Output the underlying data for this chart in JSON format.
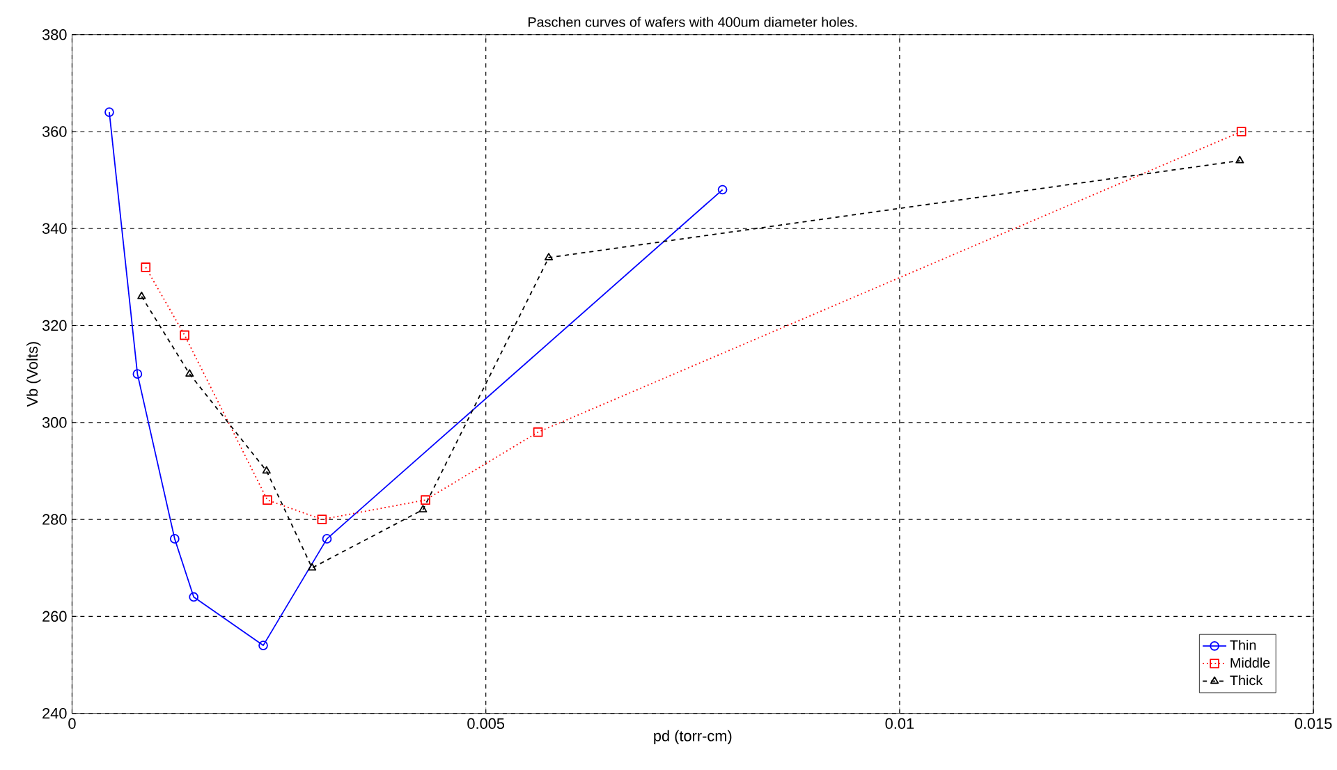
{
  "chart_data": {
    "type": "line",
    "title": "Paschen curves of wafers with 400um diameter holes.",
    "xlabel": "pd (torr-cm)",
    "ylabel": "Vb (Volts)",
    "xlim": [
      0,
      0.015
    ],
    "ylim": [
      240,
      380
    ],
    "xticks": [
      0,
      0.005,
      0.01,
      0.015
    ],
    "yticks": [
      240,
      260,
      280,
      300,
      320,
      340,
      360,
      380
    ],
    "grid": true,
    "legend": "bottom right",
    "series": [
      {
        "name": "Thin",
        "color": "#0000ff",
        "marker": "circle",
        "line_style": "solid",
        "x": [
          0.00045,
          0.00079,
          0.00124,
          0.00147,
          0.00231,
          0.00308,
          0.00786
        ],
        "values": [
          364,
          310,
          276,
          264,
          254,
          276,
          348
        ]
      },
      {
        "name": "Middle",
        "color": "#ff0000",
        "marker": "square",
        "line_style": "dotted",
        "x": [
          0.00089,
          0.00136,
          0.00236,
          0.00302,
          0.00427,
          0.00563,
          0.01413
        ],
        "values": [
          332,
          318,
          284,
          280,
          284,
          298,
          360
        ]
      },
      {
        "name": "Thick",
        "color": "#000000",
        "marker": "triangle",
        "line_style": "dashed",
        "x": [
          0.00084,
          0.00142,
          0.00235,
          0.0029,
          0.00424,
          0.00576,
          0.01411
        ],
        "values": [
          326,
          310,
          290,
          270,
          282,
          334,
          354
        ]
      }
    ]
  }
}
